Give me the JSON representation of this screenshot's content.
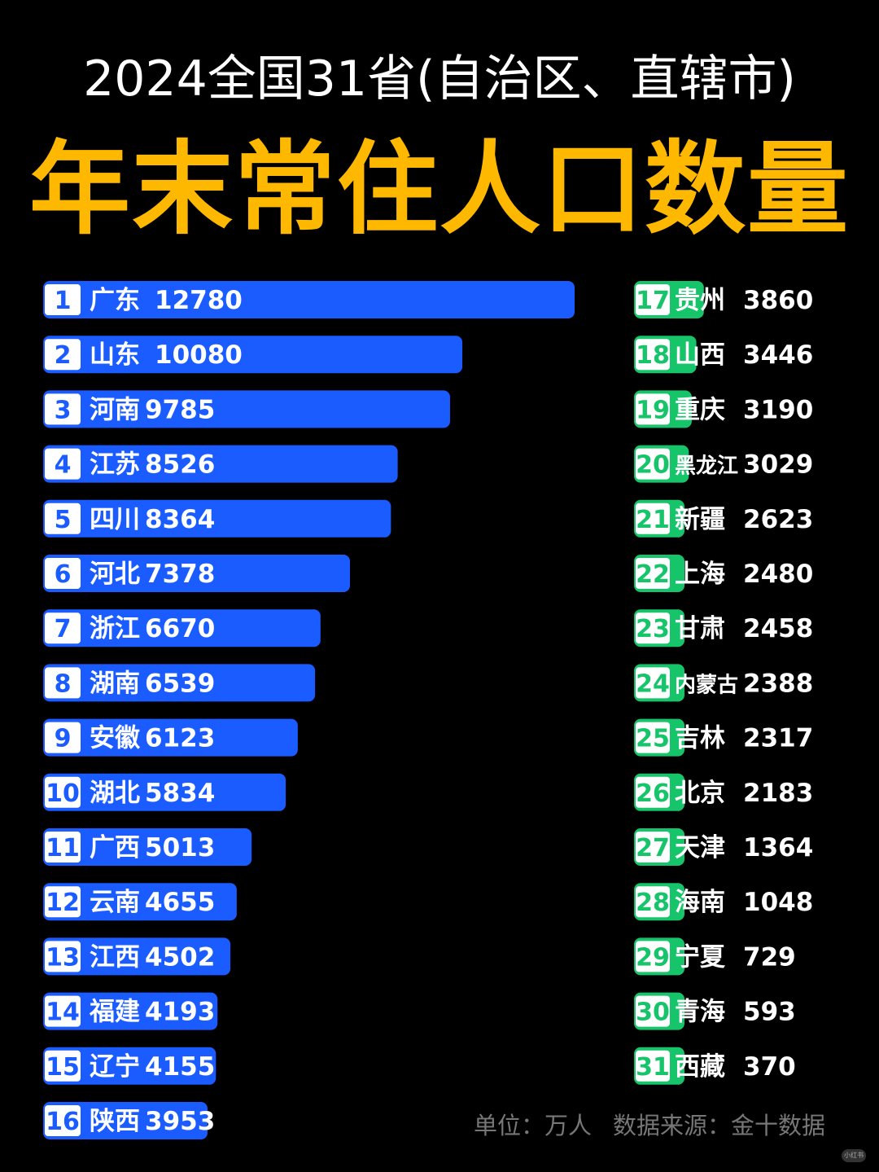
{
  "header": {
    "subtitle": "2024全国31省(自治区、直辖市)",
    "title": "年末常住人口数量"
  },
  "colors": {
    "background": "#000000",
    "title": "#FFB800",
    "left_bars": "#1A5CFF",
    "right_bars": "#16C46A",
    "rank_box": "#FFFFFF"
  },
  "chart_data": {
    "type": "bar",
    "orientation": "horizontal",
    "unit": "万人",
    "ranks": [
      1,
      2,
      3,
      4,
      5,
      6,
      7,
      8,
      9,
      10,
      11,
      12,
      13,
      14,
      15,
      16,
      17,
      18,
      19,
      20,
      21,
      22,
      23,
      24,
      25,
      26,
      27,
      28,
      29,
      30,
      31
    ],
    "categories": [
      "广东",
      "山东",
      "河南",
      "江苏",
      "四川",
      "河北",
      "浙江",
      "湖南",
      "安徽",
      "湖北",
      "广西",
      "云南",
      "江西",
      "福建",
      "辽宁",
      "陕西",
      "贵州",
      "山西",
      "重庆",
      "黑龙江",
      "新疆",
      "上海",
      "甘肃",
      "内蒙古",
      "吉林",
      "北京",
      "天津",
      "海南",
      "宁夏",
      "青海",
      "西藏"
    ],
    "values": [
      12780,
      10080,
      9785,
      8526,
      8364,
      7378,
      6670,
      6539,
      6123,
      5834,
      5013,
      4655,
      4502,
      4193,
      4155,
      3953,
      3860,
      3446,
      3190,
      3029,
      2623,
      2480,
      2458,
      2388,
      2317,
      2183,
      1364,
      1048,
      729,
      593,
      370
    ]
  },
  "footer": {
    "unit": "单位：万人",
    "source": "数据来源：金十数据"
  },
  "watermark": "小红书"
}
